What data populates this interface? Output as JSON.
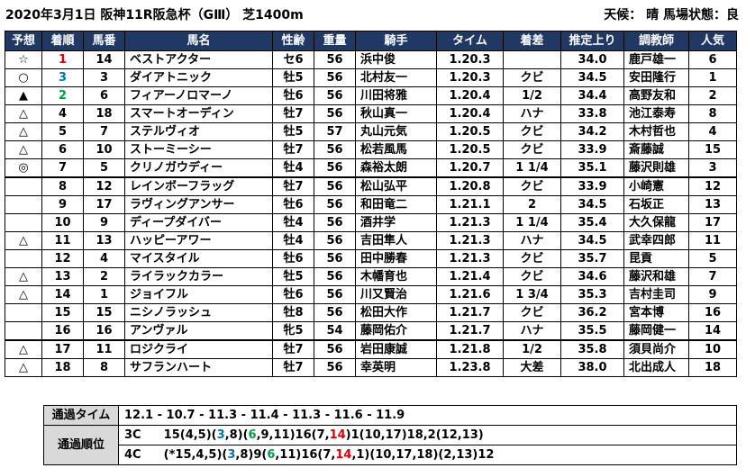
{
  "header": {
    "title": "2020年3月1日 阪神11R阪急杯（GⅢ） 芝1400m",
    "weather": "天候： 晴 馬場状態：良"
  },
  "columns": [
    "予想",
    "着順",
    "馬番",
    "馬名",
    "性齢",
    "重量",
    "騎手",
    "タイム",
    "着差",
    "推定上り",
    "調教師",
    "人気"
  ],
  "rows": [
    {
      "pred": "☆",
      "rank": "1",
      "num": "14",
      "name": "ベストアクター",
      "sexage": "セ6",
      "weight": "56",
      "jockey": "浜中俊",
      "time": "1.20.3",
      "margin": "",
      "last3f": "34.0",
      "trainer": "鹿戸雄一",
      "pop": "6"
    },
    {
      "pred": "○",
      "rank": "3",
      "num": "3",
      "name": "ダイアトニック",
      "sexage": "牡5",
      "weight": "56",
      "jockey": "北村友一",
      "time": "1.20.3",
      "margin": "クビ",
      "last3f": "34.5",
      "trainer": "安田隆行",
      "pop": "1"
    },
    {
      "pred": "▲",
      "rank": "2",
      "num": "6",
      "name": "フィアーノロマーノ",
      "sexage": "牡6",
      "weight": "56",
      "jockey": "川田将雅",
      "time": "1.20.4",
      "margin": "1/2",
      "last3f": "34.4",
      "trainer": "高野友和",
      "pop": "2"
    },
    {
      "pred": "△",
      "rank": "4",
      "num": "18",
      "name": "スマートオーディン",
      "sexage": "牡7",
      "weight": "56",
      "jockey": "秋山真一",
      "time": "1.20.4",
      "margin": "ハナ",
      "last3f": "33.8",
      "trainer": "池江泰寿",
      "pop": "8"
    },
    {
      "pred": "△",
      "rank": "5",
      "num": "7",
      "name": "ステルヴィオ",
      "sexage": "牡5",
      "weight": "57",
      "jockey": "丸山元気",
      "time": "1.20.5",
      "margin": "クビ",
      "last3f": "34.2",
      "trainer": "木村哲也",
      "pop": "4"
    },
    {
      "pred": "△",
      "rank": "6",
      "num": "10",
      "name": "ストーミーシー",
      "sexage": "牡7",
      "weight": "56",
      "jockey": "松若風馬",
      "time": "1.20.5",
      "margin": "クビ",
      "last3f": "33.9",
      "trainer": "斎藤誠",
      "pop": "15"
    },
    {
      "pred": "◎",
      "rank": "7",
      "num": "5",
      "name": "クリノガウディー",
      "sexage": "牡4",
      "weight": "56",
      "jockey": "森裕太朗",
      "time": "1.20.7",
      "margin": "1 1/4",
      "last3f": "35.1",
      "trainer": "藤沢則雄",
      "pop": "3"
    },
    {
      "pred": "",
      "rank": "8",
      "num": "12",
      "name": "レインボーフラッグ",
      "sexage": "牡7",
      "weight": "56",
      "jockey": "松山弘平",
      "time": "1.20.8",
      "margin": "クビ",
      "last3f": "33.9",
      "trainer": "小崎憲",
      "pop": "12"
    },
    {
      "pred": "",
      "rank": "9",
      "num": "17",
      "name": "ラヴィングアンサー",
      "sexage": "牡6",
      "weight": "56",
      "jockey": "和田竜二",
      "time": "1.21.1",
      "margin": "2",
      "last3f": "34.5",
      "trainer": "石坂正",
      "pop": "13"
    },
    {
      "pred": "",
      "rank": "10",
      "num": "9",
      "name": "ディープダイバー",
      "sexage": "牡4",
      "weight": "56",
      "jockey": "酒井学",
      "time": "1.21.3",
      "margin": "1 1/4",
      "last3f": "35.4",
      "trainer": "大久保龍",
      "pop": "17"
    },
    {
      "pred": "△",
      "rank": "11",
      "num": "13",
      "name": "ハッピーアワー",
      "sexage": "牡4",
      "weight": "56",
      "jockey": "吉田隼人",
      "time": "1.21.3",
      "margin": "ハナ",
      "last3f": "34.5",
      "trainer": "武幸四郎",
      "pop": "11"
    },
    {
      "pred": "",
      "rank": "12",
      "num": "4",
      "name": "マイスタイル",
      "sexage": "牡6",
      "weight": "56",
      "jockey": "田中勝春",
      "time": "1.21.3",
      "margin": "クビ",
      "last3f": "35.7",
      "trainer": "昆貢",
      "pop": "5"
    },
    {
      "pred": "△",
      "rank": "13",
      "num": "2",
      "name": "ライラックカラー",
      "sexage": "牡5",
      "weight": "56",
      "jockey": "木幡育也",
      "time": "1.21.4",
      "margin": "クビ",
      "last3f": "34.6",
      "trainer": "藤沢和雄",
      "pop": "7"
    },
    {
      "pred": "△",
      "rank": "14",
      "num": "1",
      "name": "ジョイフル",
      "sexage": "牡6",
      "weight": "56",
      "jockey": "川又賢治",
      "time": "1.21.6",
      "margin": "1 3/4",
      "last3f": "35.3",
      "trainer": "吉村圭司",
      "pop": "9"
    },
    {
      "pred": "",
      "rank": "15",
      "num": "15",
      "name": "ニシノラッシュ",
      "sexage": "牡8",
      "weight": "56",
      "jockey": "松田大作",
      "time": "1.21.7",
      "margin": "クビ",
      "last3f": "36.2",
      "trainer": "宮本博",
      "pop": "16"
    },
    {
      "pred": "",
      "rank": "16",
      "num": "16",
      "name": "アンヴァル",
      "sexage": "牝5",
      "weight": "54",
      "jockey": "藤岡佑介",
      "time": "1.21.7",
      "margin": "ハナ",
      "last3f": "35.5",
      "trainer": "藤岡健一",
      "pop": "14"
    },
    {
      "pred": "△",
      "rank": "17",
      "num": "11",
      "name": "ロジクライ",
      "sexage": "牡7",
      "weight": "56",
      "jockey": "岩田康誠",
      "time": "1.21.8",
      "margin": "1/2",
      "last3f": "35.8",
      "trainer": "須貝尚介",
      "pop": "10"
    },
    {
      "pred": "△",
      "rank": "18",
      "num": "8",
      "name": "サフランハート",
      "sexage": "牡7",
      "weight": "56",
      "jockey": "幸英明",
      "time": "1.23.8",
      "margin": "大差",
      "last3f": "38.0",
      "trainer": "北出成人",
      "pop": "18"
    }
  ],
  "passing": {
    "time_label": "通過タイム",
    "times": "12.1 - 10.7 - 11.3 - 11.4 - 11.3 - 11.6 - 11.9",
    "order_label": "通過順位",
    "corner3": {
      "label": "3C",
      "parts": [
        "15(4,5)(",
        "3",
        ",8)(",
        "6",
        ",9,11)16(7,",
        "14",
        ")1(10,17)18,2(12,13)"
      ]
    },
    "corner4": {
      "label": "4C",
      "parts": [
        "(*15,4,5)(",
        "3",
        ",8)9(",
        "6",
        ",11)16(7,",
        "14",
        ",1)(10,17,18)(2,13)12"
      ]
    }
  },
  "colors": {
    "header_bg": "#1f3864",
    "rank1": "#e00000",
    "rank2": "#0070c0",
    "rank3": "#00a040",
    "label_bg": "#d9d9d9"
  }
}
